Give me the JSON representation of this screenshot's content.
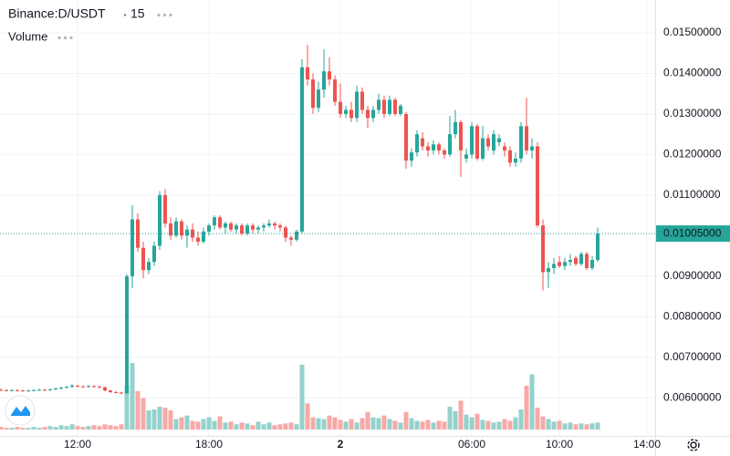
{
  "chart_data": {
    "type": "candlestick",
    "title": "Binance:D/USDT",
    "interval": "15",
    "volume_label": "Volume",
    "up_color": "#26a69a",
    "down_color": "#ef5350",
    "volume_up_color": "#94d2cc",
    "volume_down_color": "#f7a9a7",
    "grid": true,
    "xlim": [
      8.458,
      38.375
    ],
    "ylim": [
      0.00506,
      0.01581
    ],
    "vlim": [
      0,
      100
    ],
    "xticks": [
      {
        "value": 12,
        "label": "12:00"
      },
      {
        "value": 18,
        "label": "18:00"
      },
      {
        "value": 24,
        "label": "2"
      },
      {
        "value": 30,
        "label": "06:00"
      },
      {
        "value": 34,
        "label": "10:00"
      },
      {
        "value": 38,
        "label": "14:00"
      }
    ],
    "yticks": [
      {
        "value": 0.015,
        "label": "0.01500000"
      },
      {
        "value": 0.014,
        "label": "0.01400000"
      },
      {
        "value": 0.013,
        "label": "0.01300000"
      },
      {
        "value": 0.012,
        "label": "0.01200000"
      },
      {
        "value": 0.011,
        "label": "0.01100000"
      },
      {
        "value": 0.009,
        "label": "0.00900000"
      },
      {
        "value": 0.008,
        "label": "0.00800000"
      },
      {
        "value": 0.007,
        "label": "0.00700000"
      },
      {
        "value": 0.006,
        "label": "0.00600000"
      }
    ],
    "last_price": {
      "value": 0.01005,
      "label": "0.01005000"
    },
    "x": [
      8.5,
      8.75,
      9,
      9.25,
      9.5,
      9.75,
      10,
      10.25,
      10.5,
      10.75,
      11,
      11.25,
      11.5,
      11.75,
      12,
      12.25,
      12.5,
      12.75,
      13,
      13.25,
      13.5,
      13.75,
      14,
      14.25,
      14.5,
      14.75,
      15,
      15.25,
      15.5,
      15.75,
      16,
      16.25,
      16.5,
      16.75,
      17,
      17.25,
      17.5,
      17.75,
      18,
      18.25,
      18.5,
      18.75,
      19,
      19.25,
      19.5,
      19.75,
      20,
      20.25,
      20.5,
      20.75,
      21,
      21.25,
      21.5,
      21.75,
      22,
      22.25,
      22.5,
      22.75,
      23,
      23.25,
      23.5,
      23.75,
      24,
      24.25,
      24.5,
      24.75,
      25,
      25.25,
      25.5,
      25.75,
      26,
      26.25,
      26.5,
      26.75,
      27,
      27.25,
      27.5,
      27.75,
      28,
      28.25,
      28.5,
      28.75,
      29,
      29.25,
      29.5,
      29.75,
      30,
      30.25,
      30.5,
      30.75,
      31,
      31.25,
      31.5,
      31.75,
      32,
      32.25,
      32.5,
      32.75,
      33,
      33.25,
      33.5,
      33.75,
      34,
      34.25,
      34.5,
      34.75,
      35,
      35.25,
      35.5,
      35.75
    ],
    "open": [
      0.0062,
      0.00619,
      0.00618,
      0.00619,
      0.00618,
      0.00617,
      0.00618,
      0.00619,
      0.0062,
      0.00619,
      0.00621,
      0.00623,
      0.00625,
      0.00627,
      0.0063,
      0.00628,
      0.00627,
      0.00629,
      0.00628,
      0.00626,
      0.00618,
      0.00614,
      0.00613,
      0.00611,
      0.009,
      0.0104,
      0.0097,
      0.00915,
      0.00935,
      0.00975,
      0.011,
      0.0103,
      0.01,
      0.01035,
      0.01,
      0.01015,
      0.00995,
      0.00985,
      0.0101,
      0.01025,
      0.01045,
      0.0102,
      0.0103,
      0.01015,
      0.01025,
      0.01005,
      0.01025,
      0.01015,
      0.0102,
      0.01025,
      0.0103,
      0.01025,
      0.0102,
      0.00995,
      0.0099,
      0.0101,
      0.01415,
      0.01385,
      0.01315,
      0.0136,
      0.01405,
      0.01385,
      0.0133,
      0.013,
      0.0131,
      0.0129,
      0.01355,
      0.0131,
      0.0129,
      0.0131,
      0.01335,
      0.013,
      0.01335,
      0.013,
      0.013,
      0.01185,
      0.01205,
      0.0124,
      0.0122,
      0.0121,
      0.01225,
      0.0121,
      0.012,
      0.0125,
      0.0128,
      0.0119,
      0.012,
      0.0127,
      0.0119,
      0.0124,
      0.0121,
      0.0123,
      0.0122,
      0.0121,
      0.0118,
      0.0119,
      0.0127,
      0.0121,
      0.0122,
      0.01025,
      0.0091,
      0.0092,
      0.00935,
      0.00925,
      0.00935,
      0.00945,
      0.0093,
      0.00955,
      0.0092,
      0.0094
    ],
    "high": [
      0.00623,
      0.00621,
      0.00621,
      0.00621,
      0.0062,
      0.0062,
      0.00621,
      0.00622,
      0.00622,
      0.00623,
      0.00625,
      0.00627,
      0.00629,
      0.00634,
      0.00632,
      0.00631,
      0.00631,
      0.00631,
      0.0063,
      0.00628,
      0.0062,
      0.00617,
      0.00615,
      0.00905,
      0.01075,
      0.01055,
      0.00985,
      0.00945,
      0.00985,
      0.0111,
      0.01115,
      0.01045,
      0.01045,
      0.0104,
      0.01025,
      0.0103,
      0.0101,
      0.0102,
      0.0103,
      0.0105,
      0.0105,
      0.01035,
      0.01035,
      0.0103,
      0.0103,
      0.0103,
      0.0103,
      0.01025,
      0.0103,
      0.0104,
      0.01035,
      0.0103,
      0.01025,
      0.01,
      0.01015,
      0.01435,
      0.0147,
      0.014,
      0.0138,
      0.0146,
      0.0144,
      0.01395,
      0.01375,
      0.0132,
      0.0133,
      0.0137,
      0.01365,
      0.0132,
      0.0132,
      0.0135,
      0.01345,
      0.01345,
      0.0134,
      0.01325,
      0.01305,
      0.01215,
      0.0126,
      0.01255,
      0.0123,
      0.01235,
      0.0123,
      0.01215,
      0.01295,
      0.0131,
      0.01285,
      0.01215,
      0.0128,
      0.01275,
      0.0127,
      0.0125,
      0.0126,
      0.0125,
      0.0123,
      0.0122,
      0.01205,
      0.0128,
      0.0134,
      0.0124,
      0.0123,
      0.0104,
      0.00935,
      0.00945,
      0.0095,
      0.00945,
      0.00955,
      0.0095,
      0.0096,
      0.0096,
      0.0095,
      0.0102
    ],
    "low": [
      0.00617,
      0.00616,
      0.00616,
      0.00616,
      0.00615,
      0.00615,
      0.00616,
      0.00617,
      0.00617,
      0.00617,
      0.00619,
      0.00621,
      0.00623,
      0.00625,
      0.00626,
      0.00625,
      0.00625,
      0.00625,
      0.00623,
      0.00616,
      0.00612,
      0.00611,
      0.00609,
      0.0061,
      0.0087,
      0.0096,
      0.00895,
      0.00905,
      0.00925,
      0.00965,
      0.0102,
      0.0099,
      0.00995,
      0.0099,
      0.0097,
      0.00985,
      0.00975,
      0.0098,
      0.01,
      0.01015,
      0.01015,
      0.01005,
      0.0101,
      0.01005,
      0.01,
      0.01,
      0.01005,
      0.01005,
      0.0101,
      0.0102,
      0.01015,
      0.0101,
      0.00985,
      0.00975,
      0.00985,
      0.01005,
      0.0137,
      0.013,
      0.01305,
      0.0134,
      0.0137,
      0.0132,
      0.0129,
      0.0129,
      0.0128,
      0.0128,
      0.013,
      0.01265,
      0.0128,
      0.013,
      0.0129,
      0.01295,
      0.01295,
      0.01295,
      0.01165,
      0.0117,
      0.01195,
      0.0121,
      0.01195,
      0.012,
      0.012,
      0.0119,
      0.01195,
      0.0124,
      0.01145,
      0.0118,
      0.0119,
      0.01185,
      0.01185,
      0.0121,
      0.012,
      0.0122,
      0.01195,
      0.0117,
      0.0117,
      0.0118,
      0.012,
      0.0119,
      0.0102,
      0.00865,
      0.0087,
      0.00905,
      0.0092,
      0.00915,
      0.00925,
      0.00925,
      0.00925,
      0.00915,
      0.00915,
      0.00935
    ],
    "close": [
      0.00619,
      0.00618,
      0.00619,
      0.00618,
      0.00617,
      0.00618,
      0.00619,
      0.0062,
      0.00619,
      0.00621,
      0.00623,
      0.00625,
      0.00627,
      0.0063,
      0.00628,
      0.00627,
      0.00629,
      0.00628,
      0.00626,
      0.00618,
      0.00614,
      0.00613,
      0.00611,
      0.009,
      0.0104,
      0.0097,
      0.00915,
      0.00935,
      0.00975,
      0.011,
      0.0103,
      0.01,
      0.01035,
      0.01,
      0.01015,
      0.00995,
      0.00985,
      0.0101,
      0.01025,
      0.01045,
      0.0102,
      0.0103,
      0.01015,
      0.01025,
      0.01005,
      0.01025,
      0.01015,
      0.0102,
      0.01025,
      0.0103,
      0.01025,
      0.0102,
      0.00995,
      0.0099,
      0.0101,
      0.01415,
      0.01385,
      0.01315,
      0.0136,
      0.01405,
      0.01385,
      0.0133,
      0.013,
      0.0131,
      0.0129,
      0.01355,
      0.0131,
      0.0129,
      0.0131,
      0.01335,
      0.013,
      0.01335,
      0.013,
      0.0132,
      0.01185,
      0.01205,
      0.0125,
      0.0122,
      0.0121,
      0.01225,
      0.0121,
      0.012,
      0.0125,
      0.0128,
      0.0121,
      0.012,
      0.0127,
      0.0119,
      0.0124,
      0.0122,
      0.0125,
      0.0124,
      0.0121,
      0.0118,
      0.0119,
      0.0127,
      0.0121,
      0.0122,
      0.01025,
      0.0091,
      0.0092,
      0.0093,
      0.00925,
      0.00935,
      0.0094,
      0.0093,
      0.00955,
      0.0092,
      0.0094,
      0.01005
    ],
    "volume": [
      3,
      2,
      2,
      3,
      2,
      2,
      3,
      2,
      3,
      4,
      3,
      5,
      4,
      6,
      4,
      3,
      4,
      5,
      4,
      6,
      5,
      4,
      6,
      50,
      76,
      44,
      36,
      22,
      23,
      26,
      25,
      22,
      12,
      14,
      16,
      10,
      9,
      12,
      14,
      10,
      15,
      8,
      9,
      6,
      8,
      7,
      5,
      9,
      6,
      8,
      5,
      6,
      7,
      8,
      6,
      74,
      30,
      14,
      13,
      12,
      16,
      14,
      11,
      9,
      12,
      8,
      13,
      20,
      14,
      13,
      16,
      12,
      10,
      8,
      20,
      13,
      10,
      9,
      11,
      8,
      10,
      9,
      26,
      21,
      33,
      17,
      14,
      18,
      11,
      10,
      8,
      9,
      12,
      10,
      14,
      23,
      50,
      63,
      25,
      15,
      12,
      9,
      10,
      7,
      8,
      6,
      7,
      6,
      7,
      8
    ]
  }
}
